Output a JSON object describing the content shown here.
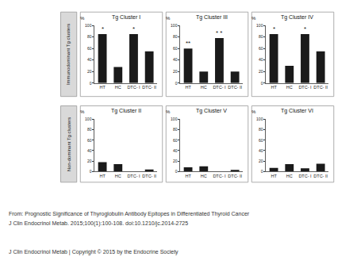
{
  "chart_data": [
    {
      "type": "bar",
      "title": "Tg Cluster I",
      "ylabel": "%",
      "categories": [
        "HT",
        "HC",
        "DTC- I",
        "DTC- II"
      ],
      "values": [
        85,
        28,
        85,
        55
      ],
      "color": "#1a1a1a",
      "ylim": [
        0,
        100
      ],
      "yticks": [
        0,
        20,
        40,
        60,
        80,
        100
      ],
      "grid": false,
      "annotations": [
        {
          "category": "HT",
          "text": "*"
        },
        {
          "category": "DTC- I",
          "text": "*"
        }
      ]
    },
    {
      "type": "bar",
      "title": "Tg Cluster III",
      "ylabel": "%",
      "categories": [
        "HT",
        "HC",
        "DTC- I",
        "DTC- II"
      ],
      "values": [
        60,
        20,
        78,
        20
      ],
      "color": "#1a1a1a",
      "ylim": [
        0,
        100
      ],
      "yticks": [
        0,
        20,
        40,
        60,
        80,
        100
      ],
      "grid": false,
      "annotations": [
        {
          "category": "HT",
          "text": "**"
        },
        {
          "category": "DTC- I",
          "text": "* *"
        }
      ]
    },
    {
      "type": "bar",
      "title": "Tg Cluster IV",
      "ylabel": "%",
      "categories": [
        "HT",
        "HC",
        "DTC- I",
        "DTC- II"
      ],
      "values": [
        85,
        30,
        85,
        55
      ],
      "color": "#1a1a1a",
      "ylim": [
        0,
        100
      ],
      "yticks": [
        0,
        20,
        40,
        60,
        80,
        100
      ],
      "grid": false,
      "annotations": [
        {
          "category": "HT",
          "text": "*"
        },
        {
          "category": "DTC- I",
          "text": "*"
        }
      ]
    },
    {
      "type": "bar",
      "title": "Tg Cluster II",
      "ylabel": "%",
      "categories": [
        "HT",
        "HC",
        "DTC- I",
        "DTC- II"
      ],
      "values": [
        18,
        14,
        0,
        4
      ],
      "color": "#1a1a1a",
      "ylim": [
        0,
        100
      ],
      "yticks": [
        0,
        20,
        40,
        60,
        80,
        100
      ],
      "grid": false
    },
    {
      "type": "bar",
      "title": "Tg Cluster V",
      "ylabel": "%",
      "categories": [
        "HT",
        "HC",
        "DTC- I",
        "DTC- II"
      ],
      "values": [
        8,
        10,
        0,
        3
      ],
      "color": "#1a1a1a",
      "ylim": [
        0,
        100
      ],
      "yticks": [
        0,
        20,
        40,
        60,
        80,
        100
      ],
      "grid": false
    },
    {
      "type": "bar",
      "title": "Tg Cluster VI",
      "ylabel": "%",
      "categories": [
        "HT",
        "HC",
        "DTC- I",
        "DTC- II"
      ],
      "values": [
        7,
        14,
        6,
        15
      ],
      "color": "#1a1a1a",
      "ylim": [
        0,
        100
      ],
      "yticks": [
        0,
        20,
        40,
        60,
        80,
        100
      ],
      "grid": false
    }
  ],
  "row_labels": [
    "Immunodominant Tg clusters",
    "Non-dominant Tg clusters"
  ],
  "footer": [
    "From: Prognostic Significance of Thyroglobulin Antibody Epitopes in Differentiated Thyroid Cancer",
    "J Clin Endocrinol Metab. 2015;100(1):100-108. doi:10.1210/jc.2014-2725",
    "J Clin Endocrinol Metab | Copyright © 2015 by the Endocrine Society"
  ]
}
